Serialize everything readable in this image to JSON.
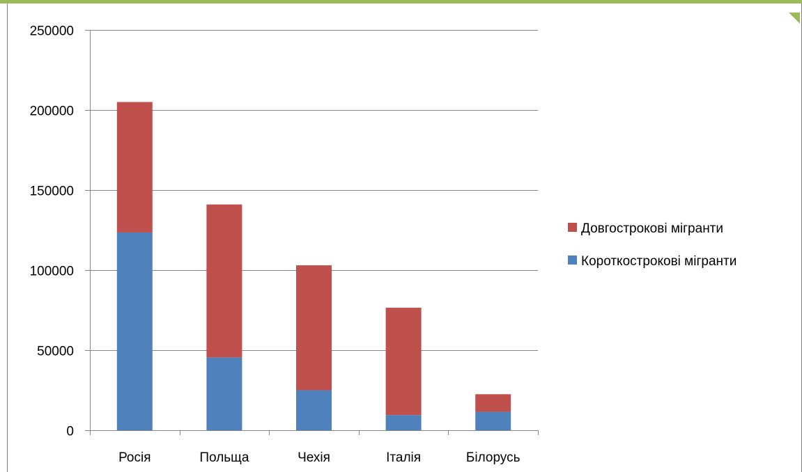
{
  "chart_data": {
    "type": "bar",
    "stacked": true,
    "title": "",
    "xlabel": "",
    "ylabel": "",
    "categories": [
      "Росія",
      "Польща",
      "Чехія",
      "Італія",
      "Білорусь"
    ],
    "series": [
      {
        "name": "Короткострокові мігранти",
        "color": "#4F81BD",
        "values": [
          123500,
          45500,
          25000,
          9500,
          11500
        ]
      },
      {
        "name": "Довгострокові мігранти",
        "color": "#C0504D",
        "values": [
          81500,
          95500,
          78000,
          67000,
          11000
        ]
      }
    ],
    "ylim": [
      0,
      250000
    ],
    "yticks": [
      0,
      50000,
      100000,
      150000,
      200000,
      250000
    ],
    "grid": true,
    "legend": "right"
  },
  "frame": {
    "accent_color": "#9BBB59",
    "border_color": "#7F7F7F"
  }
}
